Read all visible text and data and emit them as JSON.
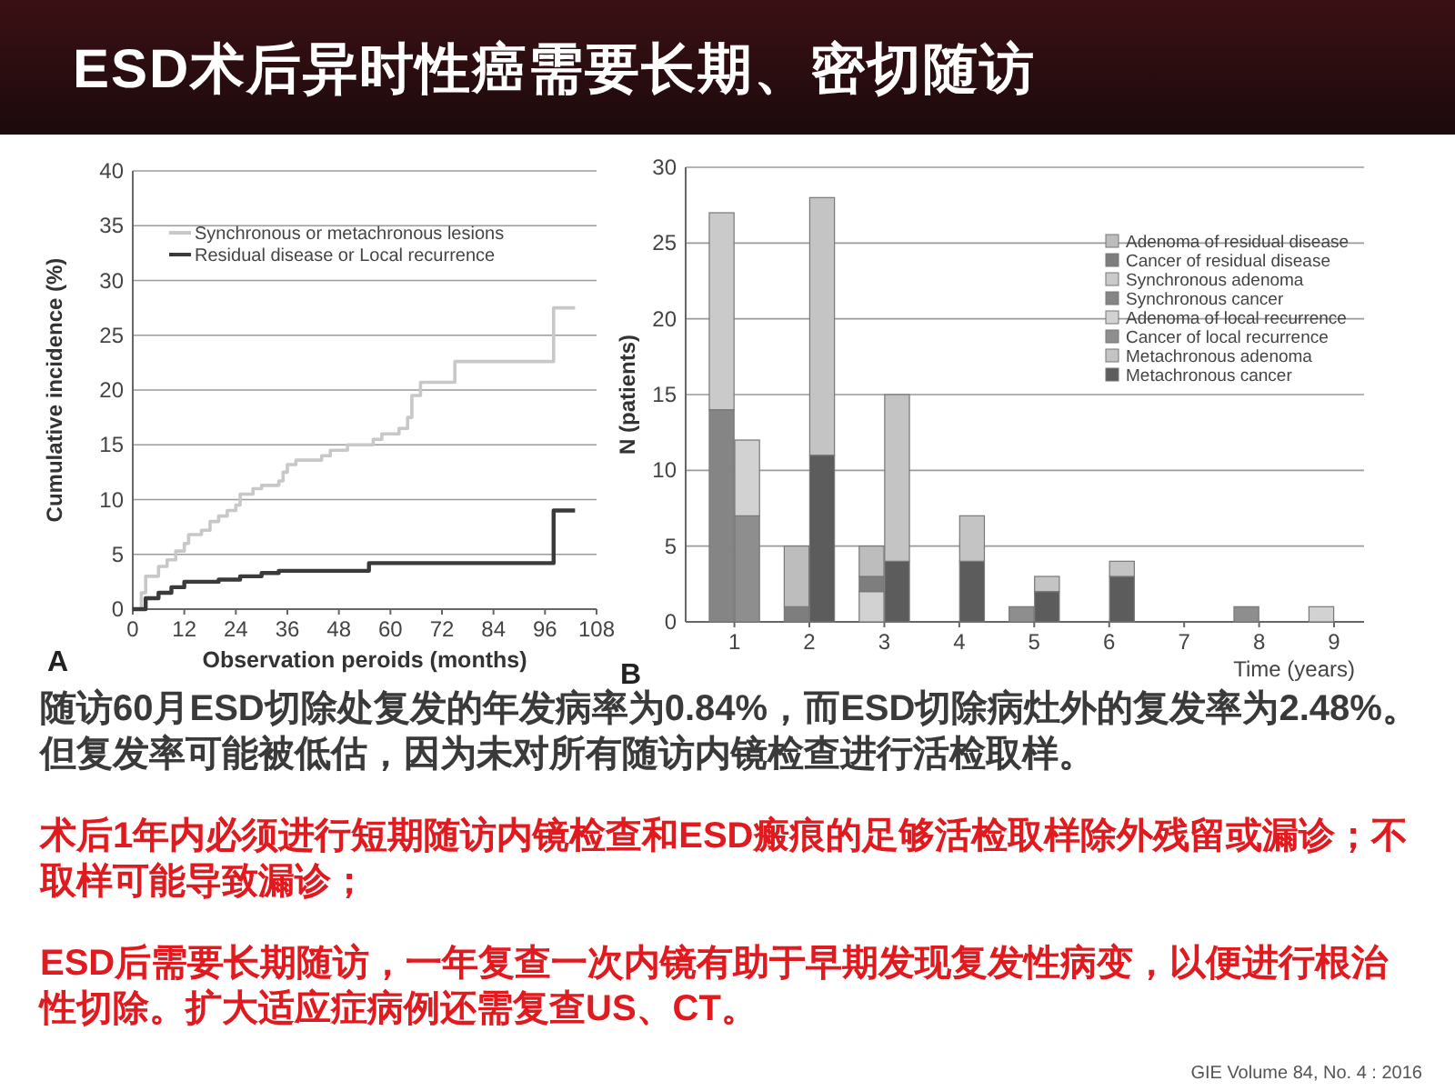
{
  "chart_data": [
    {
      "type": "other",
      "title": "ESD术后异时性癌需要长期、密切随访"
    },
    {
      "type": "step",
      "xlabel": "Observation peroids (months)",
      "ylabel": "Cumulative incidence (%)",
      "annotations": [
        "A"
      ],
      "xlim": [
        0,
        108
      ],
      "ylim": [
        0,
        40
      ],
      "xticks": [
        0,
        12,
        24,
        36,
        48,
        60,
        72,
        84,
        96,
        108
      ],
      "yticks": [
        0,
        5,
        10,
        15,
        20,
        25,
        30,
        35,
        40
      ],
      "grid": "y",
      "legend": "top left",
      "series": [
        {
          "name": "Synchronous or metachronous lesions",
          "color": "#c8c8c8",
          "x": [
            0,
            2,
            3,
            6,
            8,
            10,
            12,
            13,
            16,
            18,
            20,
            22,
            24,
            25,
            28,
            30,
            34,
            35,
            36,
            38,
            44,
            46,
            50,
            56,
            58,
            62,
            64,
            65,
            67,
            75,
            98,
            103
          ],
          "values": [
            0,
            1.5,
            3,
            3.9,
            4.5,
            5.3,
            6,
            6.8,
            7.2,
            8,
            8.5,
            9,
            9.5,
            10.5,
            11,
            11.3,
            11.7,
            12.5,
            13.2,
            13.6,
            14,
            14.5,
            15,
            15.5,
            16,
            16.5,
            17.5,
            19.5,
            20.7,
            22.6,
            27.5,
            27.5
          ]
        },
        {
          "name": "Residual disease or Local recurrence",
          "color": "#3a3a3a",
          "x": [
            0,
            3,
            6,
            9,
            12,
            20,
            25,
            30,
            34,
            55,
            98,
            103
          ],
          "values": [
            0,
            1,
            1.5,
            2,
            2.5,
            2.7,
            3,
            3.3,
            3.5,
            4.2,
            9,
            9
          ]
        }
      ]
    },
    {
      "type": "bar",
      "stacked": true,
      "xlabel": "Time (years)",
      "ylabel": "N (patients)",
      "annotations": [
        "B"
      ],
      "xlim": [
        0.35,
        9.4
      ],
      "ylim": [
        0,
        30
      ],
      "xticks": [
        1,
        2,
        3,
        4,
        5,
        6,
        7,
        8,
        9
      ],
      "yticks": [
        0,
        5,
        10,
        15,
        20,
        25,
        30
      ],
      "grid": "y",
      "legend": "right",
      "series": [
        {
          "name": "Metachronous cancer",
          "color": "#5c5c5c",
          "x": [
            0.83,
            1.17,
            1.83,
            2.17,
            2.83,
            3.17,
            3.83,
            4.17,
            4.83,
            5.17,
            5.83,
            6.17,
            6.83,
            7.17,
            7.83,
            8.17,
            8.83,
            9.17
          ],
          "values": [
            0,
            0,
            0,
            11,
            0,
            4,
            0,
            4,
            0,
            2,
            0,
            3,
            0,
            0,
            0,
            0,
            0,
            0
          ]
        },
        {
          "name": "Metachronous adenoma",
          "color": "#c4c4c4",
          "x": [
            0.83,
            1.17,
            1.83,
            2.17,
            2.83,
            3.17,
            3.83,
            4.17,
            4.83,
            5.17,
            5.83,
            6.17,
            6.83,
            7.17,
            7.83,
            8.17,
            8.83,
            9.17
          ],
          "values": [
            0,
            0,
            0,
            17,
            0,
            11,
            0,
            3,
            0,
            1,
            0,
            1,
            0,
            0,
            0,
            0,
            0,
            0
          ]
        },
        {
          "name": "Cancer of local recurrence",
          "color": "#8e8e8e",
          "x": [
            0.83,
            1.17,
            1.83,
            2.17,
            2.83,
            3.17,
            3.83,
            4.17,
            4.83,
            5.17,
            5.83,
            6.17,
            6.83,
            7.17,
            7.83,
            8.17,
            8.83,
            9.17
          ],
          "values": [
            0,
            7,
            0,
            0,
            0,
            0,
            0,
            0,
            1,
            0,
            0,
            0,
            0,
            0,
            1,
            0,
            0,
            0
          ]
        },
        {
          "name": "Adenoma of local recurrence",
          "color": "#d2d2d2",
          "x": [
            0.83,
            1.17,
            1.83,
            2.17,
            2.83,
            3.17,
            3.83,
            4.17,
            4.83,
            5.17,
            5.83,
            6.17,
            6.83,
            7.17,
            7.83,
            8.17,
            8.83,
            9.17
          ],
          "values": [
            0,
            5,
            0,
            0,
            2,
            0,
            0,
            0,
            0,
            0,
            0,
            0,
            0,
            0,
            0,
            0,
            1,
            0
          ]
        },
        {
          "name": "Synchronous cancer",
          "color": "#858585",
          "x": [
            0.83,
            1.17,
            1.83,
            2.17,
            2.83,
            3.17,
            3.83,
            4.17,
            4.83,
            5.17,
            5.83,
            6.17,
            6.83,
            7.17,
            7.83,
            8.17,
            8.83,
            9.17
          ],
          "values": [
            14,
            0,
            0,
            0,
            0,
            0,
            0,
            0,
            0,
            0,
            0,
            0,
            0,
            0,
            0,
            0,
            0,
            0
          ]
        },
        {
          "name": "Synchronous adenoma",
          "color": "#cacaca",
          "x": [
            0.83,
            1.17,
            1.83,
            2.17,
            2.83,
            3.17,
            3.83,
            4.17,
            4.83,
            5.17,
            5.83,
            6.17,
            6.83,
            7.17,
            7.83,
            8.17,
            8.83,
            9.17
          ],
          "values": [
            13,
            0,
            0,
            0,
            0,
            0,
            0,
            0,
            0,
            0,
            0,
            0,
            0,
            0,
            0,
            0,
            0,
            0
          ]
        },
        {
          "name": "Cancer of residual disease",
          "color": "#7e7e7e",
          "x": [
            0.83,
            1.17,
            1.83,
            2.17,
            2.83,
            3.17,
            3.83,
            4.17,
            4.83,
            5.17,
            5.83,
            6.17,
            6.83,
            7.17,
            7.83,
            8.17,
            8.83,
            9.17
          ],
          "values": [
            0,
            0,
            1,
            0,
            1,
            0,
            0,
            0,
            0,
            0,
            0,
            0,
            0,
            0,
            0,
            0,
            0,
            0
          ]
        },
        {
          "name": "Adenoma of residual disease",
          "color": "#bdbdbd",
          "x": [
            0.83,
            1.17,
            1.83,
            2.17,
            2.83,
            3.17,
            3.83,
            4.17,
            4.83,
            5.17,
            5.83,
            6.17,
            6.83,
            7.17,
            7.83,
            8.17,
            8.83,
            9.17
          ],
          "values": [
            0,
            0,
            4,
            0,
            2,
            0,
            0,
            0,
            0,
            0,
            0,
            0,
            0,
            0,
            0,
            0,
            0,
            0
          ]
        }
      ]
    },
    {
      "type": "other",
      "annotations": [
        "随访60月ESD切除处复发的年发病率为0.84%，而ESD切除病灶外的复发率为2.48%。但复发率可能被低估，因为未对所有随访内镜检查进行活检取样。",
        "术后1年内必须进行短期随访内镜检查和ESD瘢痕的足够活检取样除外残留或漏诊；不取样可能导致漏诊；",
        "ESD后需要长期随访，一年复查一次内镜有助于早期发现复发性病变，以便进行根治性切除。扩大适应症病例还需复查US、CT。",
        "GIE Volume 84, No. 4 : 2016"
      ]
    }
  ]
}
